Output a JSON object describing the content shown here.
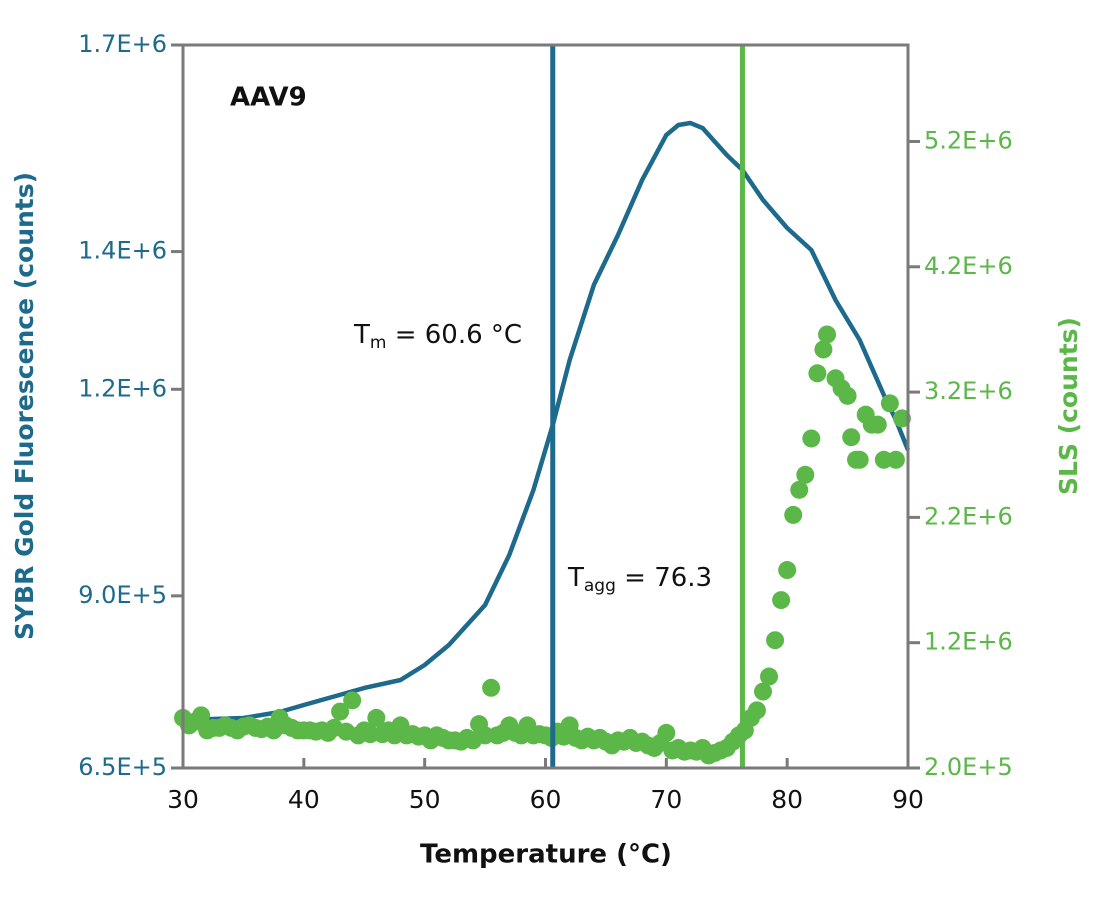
{
  "chart_data": {
    "type": "combo",
    "title": "AAV9",
    "x_label": "Temperature (°C)",
    "y_label": "SYBR Gold Fluorescence (counts)",
    "y2_label": "SLS (counts)",
    "xlim": [
      30,
      90
    ],
    "xticks": [
      30,
      40,
      50,
      60,
      70,
      80,
      90
    ],
    "ylim": [
      650000,
      1700000
    ],
    "yticks": [
      {
        "value": 650000,
        "label": "6.5E+5"
      },
      {
        "value": 900000,
        "label": "9.0E+5"
      },
      {
        "value": 1200000,
        "label": "1.2E+6"
      },
      {
        "value": 1400000,
        "label": "1.4E+6"
      },
      {
        "value": 1700000,
        "label": "1.7E+6"
      }
    ],
    "y2lim": [
      200000,
      5970000
    ],
    "y2ticks": [
      {
        "value": 200000,
        "label": "2.0E+5"
      },
      {
        "value": 1200000,
        "label": "1.2E+6"
      },
      {
        "value": 2200000,
        "label": "2.2E+6"
      },
      {
        "value": 3200000,
        "label": "3.2E+6"
      },
      {
        "value": 4200000,
        "label": "4.2E+6"
      },
      {
        "value": 5200000,
        "label": "5.2E+6"
      }
    ],
    "y_color": "#1d6a8d",
    "y2_color": "#5cb749",
    "axis_color": "#7a7a7a",
    "series": [
      {
        "type": "line",
        "axis": "y",
        "color": "#1d6a8d",
        "x": [
          30,
          35,
          38,
          40,
          45,
          48,
          50,
          52,
          55,
          57,
          59,
          60.6,
          62,
          64,
          66,
          68,
          70,
          71,
          72,
          73,
          75,
          76.3,
          78,
          80,
          82,
          84,
          86,
          88,
          89,
          90
        ],
        "values": [
          719700,
          722600,
          731300,
          741500,
          766200,
          777800,
          799600,
          828600,
          886700,
          959300,
          1053700,
          1148100,
          1242500,
          1351400,
          1424100,
          1504000,
          1569300,
          1583800,
          1586700,
          1579400,
          1540200,
          1518500,
          1474900,
          1434200,
          1402300,
          1329700,
          1271600,
          1191700,
          1155400,
          1111800
        ]
      },
      {
        "type": "scatter",
        "axis": "y2",
        "color": "#5cb749",
        "x": [
          30,
          30.5,
          31,
          31.5,
          32,
          32.5,
          33,
          33.5,
          34,
          34.5,
          35,
          35.5,
          36,
          36.5,
          37,
          37.5,
          38,
          38.5,
          39,
          39.5,
          40,
          40.5,
          41,
          41.5,
          42,
          42.5,
          43,
          43.5,
          44,
          44.5,
          45,
          45.5,
          46,
          46.5,
          47,
          47.5,
          48,
          48.5,
          49,
          49.5,
          50,
          50.5,
          51,
          51.5,
          52,
          52.5,
          53,
          53.5,
          54,
          54.5,
          55,
          55.5,
          56,
          56.5,
          57,
          57.5,
          58,
          58.5,
          59,
          59.5,
          60,
          60.5,
          61,
          61.5,
          62,
          62.5,
          63,
          63.5,
          64,
          64.5,
          65,
          65.5,
          66,
          66.5,
          67,
          67.5,
          68,
          68.5,
          69,
          69.5,
          70,
          70.5,
          71,
          71.5,
          72,
          72.5,
          73,
          73.5,
          74,
          74.5,
          75,
          75.5,
          76,
          76.5,
          77,
          77.5,
          78,
          78.5,
          79,
          79.5,
          80,
          80.5,
          81,
          81.5,
          82,
          82.5,
          83,
          83.3,
          84,
          84.5,
          85,
          85.3,
          85.7,
          86,
          86.5,
          87,
          87.5,
          88,
          88.5,
          89,
          89.5
        ],
        "values": [
          600000,
          540000,
          570000,
          620000,
          500000,
          520000,
          520000,
          540000,
          520000,
          500000,
          530000,
          540000,
          520000,
          510000,
          530000,
          500000,
          600000,
          540000,
          520000,
          500000,
          500000,
          500000,
          490000,
          500000,
          480000,
          520000,
          650000,
          490000,
          740000,
          460000,
          500000,
          470000,
          600000,
          470000,
          500000,
          460000,
          540000,
          460000,
          470000,
          450000,
          460000,
          420000,
          460000,
          440000,
          420000,
          420000,
          410000,
          440000,
          420000,
          550000,
          460000,
          840000,
          460000,
          480000,
          540000,
          480000,
          460000,
          540000,
          460000,
          470000,
          460000,
          440000,
          490000,
          450000,
          540000,
          440000,
          420000,
          450000,
          420000,
          440000,
          410000,
          380000,
          420000,
          410000,
          440000,
          400000,
          410000,
          380000,
          360000,
          400000,
          480000,
          340000,
          360000,
          330000,
          340000,
          330000,
          360000,
          300000,
          320000,
          340000,
          360000,
          410000,
          460000,
          500000,
          600000,
          660000,
          810000,
          930000,
          1220000,
          1540000,
          1780000,
          2220000,
          2420000,
          2540000,
          2830000,
          3350000,
          3540000,
          3660000,
          3310000,
          3230000,
          3170000,
          2840000,
          2660000,
          2660000,
          3020000,
          2940000,
          2940000,
          2660000,
          3110000,
          2660000,
          2990000
        ]
      }
    ],
    "vlines": [
      {
        "x": 60.6,
        "color": "#1d6a8d"
      },
      {
        "x": 76.3,
        "color": "#5cb749"
      }
    ],
    "annotations": [
      {
        "main": "T",
        "sub": "m",
        "rest": " = 60.6 °C"
      },
      {
        "main": "T",
        "sub": "agg",
        "rest": " = 76.3"
      }
    ]
  }
}
